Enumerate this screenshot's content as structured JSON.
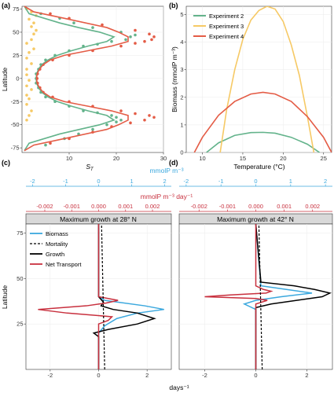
{
  "panels": {
    "a": {
      "label": "(a)",
      "ylabel": "Latitude",
      "xlabel_main": "S",
      "xlabel_sub": "T",
      "xlim": [
        0,
        30
      ],
      "ylim": [
        -80,
        78
      ],
      "xticks": [
        "10",
        "20",
        "30"
      ],
      "xtick_values": [
        10,
        20,
        30
      ],
      "yticks": [
        "-75",
        "-50",
        "-25",
        "0",
        "25",
        "50",
        "75"
      ],
      "ytick_values": [
        -75,
        -50,
        -25,
        0,
        25,
        50,
        75
      ]
    },
    "b": {
      "label": "(b)",
      "ylabel": "Biomass (mmolP m⁻³)",
      "xlabel": "Temperature (°C)",
      "xlim": [
        8,
        26
      ],
      "ylim": [
        0,
        5.3
      ],
      "xticks": [
        "10",
        "15",
        "20",
        "25"
      ],
      "xtick_values": [
        10,
        15,
        20,
        25
      ],
      "yticks": [
        "0",
        "1",
        "2",
        "3",
        "4",
        "5"
      ],
      "ytick_values": [
        0,
        1,
        2,
        3,
        4,
        5
      ],
      "legend": [
        "Experiment 2",
        "Experiment 3",
        "Experiment 4"
      ]
    },
    "c": {
      "label": "(c)",
      "strip": "Maximum growth at 28° N"
    },
    "d": {
      "label": "(d)",
      "strip": "Maximum growth at 42° N"
    },
    "bottom": {
      "top_axis_label": "mmolP m⁻³",
      "top_axis_ticks": [
        "-2",
        "-1",
        "0",
        "1",
        "2"
      ],
      "top_axis_values": [
        -2,
        -1,
        0,
        1,
        2
      ],
      "mid_axis_label": "mmolP m⁻³ day⁻¹",
      "mid_axis_ticks": [
        "-0.002",
        "-0.001",
        "0.000",
        "0.001",
        "0.002"
      ],
      "mid_axis_values": [
        -0.002,
        -0.001,
        0,
        0.001,
        0.002
      ],
      "bottom_axis_label": "days⁻¹",
      "bottom_axis_ticks": [
        "-2",
        "0",
        "2"
      ],
      "bottom_axis_values": [
        -2,
        0,
        2
      ],
      "ylabel": "Latitude",
      "yticks": [
        "25",
        "50",
        "75"
      ],
      "ytick_values": [
        25,
        50,
        75
      ],
      "xlim": [
        -3,
        3
      ],
      "ylim": [
        0,
        80
      ],
      "legend": [
        "Biomass",
        "Mortality",
        "Growth",
        "Net Transport"
      ]
    }
  },
  "colors": {
    "exp2": "#63b38b",
    "exp3": "#f6c965",
    "exp4": "#e45c46",
    "biomass": "#3ba8de",
    "mortality": "#000000",
    "growth": "#000000",
    "transport": "#c8303e",
    "strip_bg": "#d9d9d9",
    "grid": "#ebebeb"
  },
  "chart_data": [
    {
      "panel": "a",
      "type": "line",
      "series": [
        {
          "name": "Experiment 2",
          "lat": [
            -78,
            -70,
            -60,
            -50,
            -45,
            -40,
            -35,
            -30,
            -25,
            -20,
            -15,
            -10,
            -5,
            0,
            5,
            10,
            15,
            20,
            25,
            30,
            35,
            40,
            45,
            50,
            55,
            60,
            70,
            78
          ],
          "st": [
            0.5,
            1.5,
            8,
            16.5,
            19.5,
            18,
            14,
            10.5,
            7.5,
            5.5,
            4.2,
            3.5,
            3.1,
            3,
            3.1,
            3.5,
            4.2,
            5.5,
            7.5,
            10.5,
            14,
            18,
            19.5,
            16.5,
            12,
            8,
            1.5,
            0.5
          ]
        },
        {
          "name": "Experiment 4",
          "lat": [
            -78,
            -72,
            -65,
            -55,
            -50,
            -45,
            -40,
            -35,
            -30,
            -25,
            -20,
            -15,
            -10,
            -5,
            0,
            5,
            10,
            15,
            20,
            25,
            30,
            35,
            40,
            45,
            50,
            55,
            65,
            72,
            78
          ],
          "st": [
            0.5,
            2.5,
            9,
            18,
            20.5,
            22.5,
            22.5,
            19,
            14,
            9,
            6,
            4.5,
            3.7,
            3.2,
            3.1,
            3.2,
            3.7,
            4.5,
            6,
            9,
            14,
            19,
            22.5,
            22.5,
            20.5,
            18,
            9,
            2.5,
            0.5
          ]
        }
      ],
      "points": [
        {
          "series": "Experiment 2",
          "lat": [
            -72,
            -65,
            -60,
            -55,
            -50,
            -47,
            -45,
            -42,
            -40,
            -37,
            -35,
            -30,
            -25,
            -20,
            -15,
            -10,
            -5,
            0,
            5,
            10,
            15,
            20,
            25,
            30,
            35,
            37,
            40,
            42,
            45,
            47,
            50,
            55,
            60,
            65,
            70
          ],
          "st": [
            5,
            9,
            12,
            15,
            18,
            20,
            21,
            20,
            19,
            16,
            13,
            10,
            7,
            5,
            4,
            3.5,
            3,
            3,
            3,
            3.5,
            4,
            5,
            7,
            10,
            13,
            16,
            19,
            22,
            23,
            24,
            21,
            15,
            11,
            8,
            4
          ]
        },
        {
          "series": "Experiment 4",
          "lat": [
            -70,
            -65,
            -58,
            -52,
            -48,
            -45,
            -42,
            -40,
            -38,
            -35,
            -30,
            -25,
            -20,
            -15,
            -10,
            -5,
            0,
            5,
            10,
            15,
            20,
            25,
            30,
            35,
            38,
            40,
            42,
            45,
            48,
            52,
            58,
            65,
            70
          ],
          "st": [
            6,
            10,
            15,
            19,
            23,
            26,
            28,
            27,
            24,
            21,
            15,
            10,
            6.5,
            4.5,
            3.8,
            3.3,
            3.2,
            3.3,
            3.8,
            4.5,
            6.5,
            10,
            15,
            21,
            24,
            26,
            27.5,
            28,
            27,
            24,
            17,
            10,
            6
          ]
        },
        {
          "series": "Experiment 3",
          "lat": [
            -45,
            -40,
            -35,
            -28,
            -22,
            -18,
            -12,
            -8,
            -2,
            4,
            10,
            16,
            22,
            28,
            32,
            38,
            42,
            48,
            52,
            56,
            60,
            64,
            68,
            72,
            75
          ],
          "st": [
            1,
            1.5,
            2,
            1,
            1.5,
            1,
            2,
            1,
            1.5,
            1,
            1,
            2,
            1,
            1.5,
            2.5,
            1,
            2,
            2.5,
            3,
            2,
            2.5,
            1.5,
            3,
            2,
            1
          ]
        }
      ]
    },
    {
      "panel": "b",
      "type": "line",
      "xlabel": "Temperature (°C)",
      "ylabel": "Biomass (mmolP m⁻³)",
      "series": [
        {
          "name": "Experiment 2",
          "x": [
            10.5,
            12,
            14,
            16,
            17.5,
            19,
            21,
            23,
            24.5
          ],
          "y": [
            0,
            0.35,
            0.62,
            0.72,
            0.73,
            0.7,
            0.55,
            0.3,
            0
          ]
        },
        {
          "name": "Experiment 3",
          "x": [
            12.2,
            13,
            14,
            15,
            16,
            17,
            18,
            19,
            20,
            21,
            22,
            23,
            23.8
          ],
          "y": [
            0,
            1.55,
            3.0,
            4.1,
            4.8,
            5.15,
            5.3,
            5.2,
            4.75,
            3.9,
            2.8,
            1.3,
            0
          ]
        },
        {
          "name": "Experiment 4",
          "x": [
            9,
            10,
            12,
            14,
            16,
            17.5,
            19,
            21,
            23,
            25,
            26
          ],
          "y": [
            0,
            0.55,
            1.35,
            1.85,
            2.12,
            2.18,
            2.12,
            1.85,
            1.3,
            0.55,
            0
          ]
        }
      ]
    },
    {
      "panel": "c",
      "type": "line",
      "series": [
        {
          "name": "Biomass",
          "lat": [
            0,
            20,
            24,
            28,
            31,
            33,
            35,
            38,
            40,
            80
          ],
          "x": [
            0,
            0,
            0.25,
            0.75,
            1.6,
            2.7,
            1.9,
            0.25,
            0,
            0
          ]
        },
        {
          "name": "Mortality",
          "lat": [
            0,
            80
          ],
          "x": [
            0.25,
            0.12
          ]
        },
        {
          "name": "Growth",
          "lat": [
            0,
            18,
            20,
            22,
            25,
            28,
            31,
            33,
            35,
            37,
            40,
            80
          ],
          "x": [
            0,
            0,
            -0.2,
            0.4,
            1.6,
            2.3,
            1.6,
            0.6,
            0.1,
            0.2,
            0,
            0
          ]
        },
        {
          "name": "Net Transport",
          "lat": [
            0,
            25,
            27,
            29,
            31,
            33,
            35,
            36.5,
            38,
            40,
            80
          ],
          "x": [
            0,
            0,
            0.4,
            0.55,
            -1.3,
            -2.5,
            -0.5,
            0.3,
            0.8,
            0,
            0
          ]
        }
      ]
    },
    {
      "panel": "d",
      "type": "line",
      "series": [
        {
          "name": "Biomass",
          "lat": [
            0,
            33,
            36,
            38,
            40,
            42,
            44,
            46,
            80
          ],
          "x": [
            0,
            0,
            -0.45,
            0,
            1.0,
            2.2,
            1.2,
            0.2,
            0
          ]
        },
        {
          "name": "Mortality",
          "lat": [
            0,
            80
          ],
          "x": [
            0.25,
            0.12
          ]
        },
        {
          "name": "Growth",
          "lat": [
            0,
            34,
            36,
            38,
            40,
            42,
            44,
            46,
            48,
            80
          ],
          "x": [
            0,
            0,
            0.6,
            1.6,
            2.6,
            2.9,
            2.3,
            1.5,
            0.2,
            0
          ]
        },
        {
          "name": "Net Transport",
          "lat": [
            0,
            36,
            38,
            39,
            40,
            41,
            42,
            43,
            44,
            46,
            80
          ],
          "x": [
            0,
            0,
            0.45,
            0,
            -2.0,
            -1.0,
            0.4,
            0.6,
            0.3,
            0,
            0
          ]
        }
      ]
    }
  ]
}
